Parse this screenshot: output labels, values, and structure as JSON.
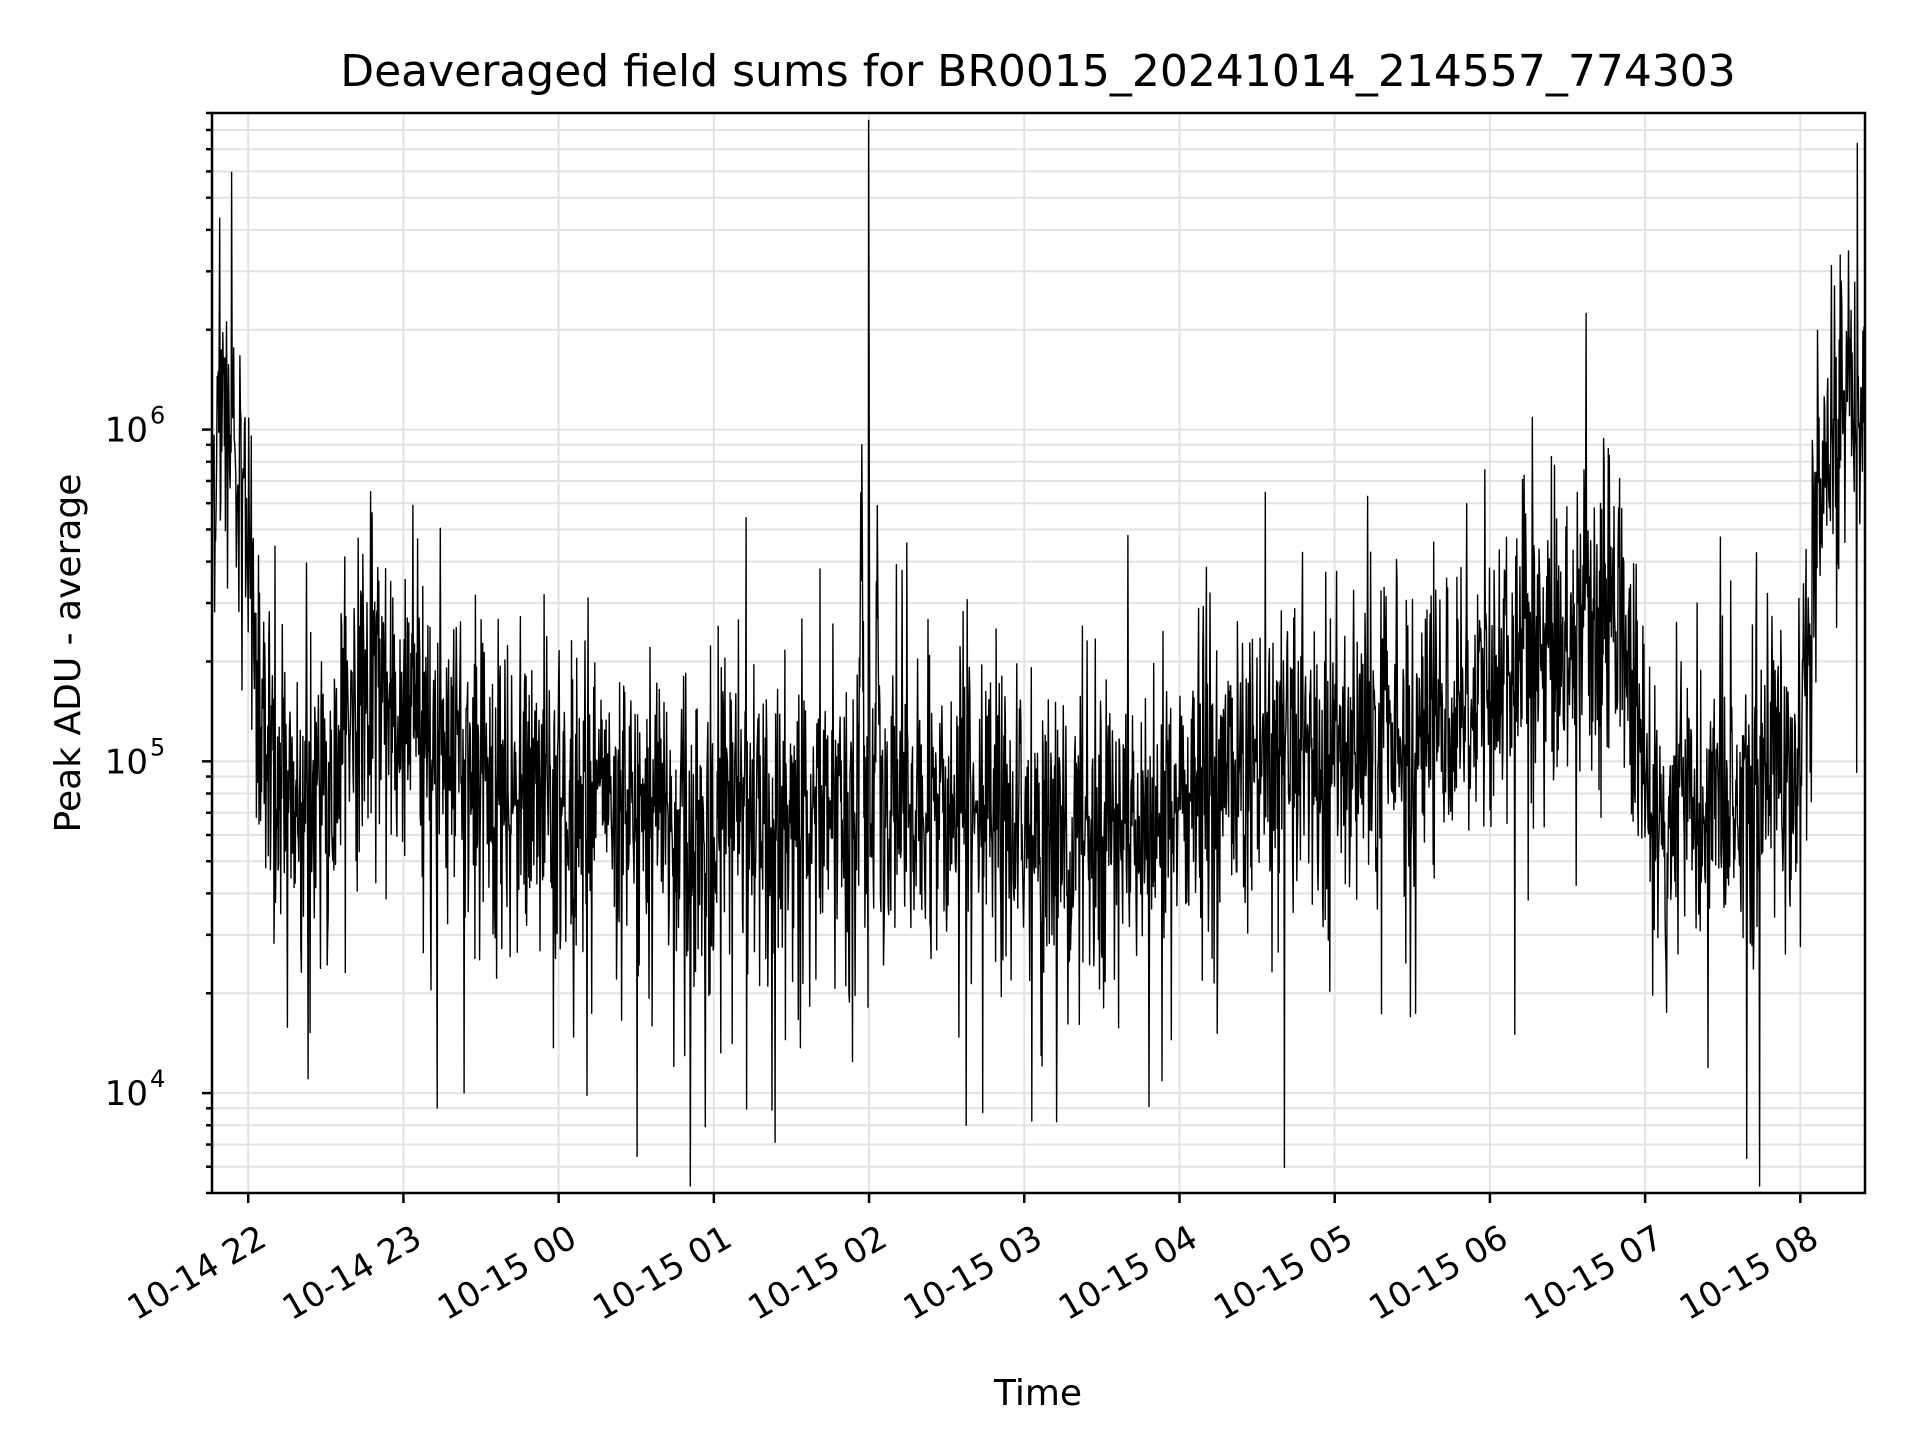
{
  "chart_data": {
    "type": "line",
    "title": "Deaveraged field sums for BR0015_20241014_214557_774303",
    "xlabel": "Time",
    "ylabel": "Peak ADU - average",
    "yscale": "log",
    "xlim": [
      "2024-10-14 21:46",
      "2024-10-15 08:25"
    ],
    "ylim": [
      5000,
      9000000
    ],
    "grid": true,
    "line_color": "#000000",
    "x_ticks": [
      {
        "label": "10-14 22",
        "t": "2024-10-14 22:00"
      },
      {
        "label": "10-14 23",
        "t": "2024-10-14 23:00"
      },
      {
        "label": "10-15 00",
        "t": "2024-10-15 00:00"
      },
      {
        "label": "10-15 01",
        "t": "2024-10-15 01:00"
      },
      {
        "label": "10-15 02",
        "t": "2024-10-15 02:00"
      },
      {
        "label": "10-15 03",
        "t": "2024-10-15 03:00"
      },
      {
        "label": "10-15 04",
        "t": "2024-10-15 04:00"
      },
      {
        "label": "10-15 05",
        "t": "2024-10-15 05:00"
      },
      {
        "label": "10-15 06",
        "t": "2024-10-15 06:00"
      },
      {
        "label": "10-15 07",
        "t": "2024-10-15 07:00"
      },
      {
        "label": "10-15 08",
        "t": "2024-10-15 08:00"
      }
    ],
    "y_ticks": [
      {
        "base": "10",
        "exp": "4",
        "value": 10000
      },
      {
        "base": "10",
        "exp": "5",
        "value": 100000
      },
      {
        "base": "10",
        "exp": "6",
        "value": 1000000
      }
    ],
    "x": [
      "2024-10-14 21:46",
      "2024-10-14 21:50",
      "2024-10-14 21:55",
      "2024-10-14 22:00",
      "2024-10-14 22:05",
      "2024-10-14 22:10",
      "2024-10-14 22:15",
      "2024-10-14 22:20",
      "2024-10-14 22:25",
      "2024-10-14 22:30",
      "2024-10-14 22:35",
      "2024-10-14 22:40",
      "2024-10-14 22:45",
      "2024-10-14 22:50",
      "2024-10-14 22:55",
      "2024-10-14 23:00",
      "2024-10-14 23:05",
      "2024-10-14 23:10",
      "2024-10-14 23:15",
      "2024-10-14 23:20",
      "2024-10-14 23:25",
      "2024-10-14 23:30",
      "2024-10-14 23:35",
      "2024-10-14 23:40",
      "2024-10-14 23:45",
      "2024-10-14 23:50",
      "2024-10-14 23:55",
      "2024-10-15 00:00",
      "2024-10-15 00:05",
      "2024-10-15 00:10",
      "2024-10-15 00:15",
      "2024-10-15 00:20",
      "2024-10-15 00:25",
      "2024-10-15 00:30",
      "2024-10-15 00:35",
      "2024-10-15 00:40",
      "2024-10-15 00:45",
      "2024-10-15 00:50",
      "2024-10-15 00:55",
      "2024-10-15 01:00",
      "2024-10-15 01:05",
      "2024-10-15 01:10",
      "2024-10-15 01:15",
      "2024-10-15 01:20",
      "2024-10-15 01:25",
      "2024-10-15 01:30",
      "2024-10-15 01:35",
      "2024-10-15 01:40",
      "2024-10-15 01:45",
      "2024-10-15 01:50",
      "2024-10-15 01:55",
      "2024-10-15 02:00",
      "2024-10-15 02:05",
      "2024-10-15 02:10",
      "2024-10-15 02:15",
      "2024-10-15 02:20",
      "2024-10-15 02:25",
      "2024-10-15 02:30",
      "2024-10-15 02:35",
      "2024-10-15 02:40",
      "2024-10-15 02:45",
      "2024-10-15 02:50",
      "2024-10-15 02:55",
      "2024-10-15 03:00",
      "2024-10-15 03:05",
      "2024-10-15 03:10",
      "2024-10-15 03:15",
      "2024-10-15 03:20",
      "2024-10-15 03:25",
      "2024-10-15 03:30",
      "2024-10-15 03:35",
      "2024-10-15 03:40",
      "2024-10-15 03:45",
      "2024-10-15 03:50",
      "2024-10-15 03:55",
      "2024-10-15 04:00",
      "2024-10-15 04:05",
      "2024-10-15 04:10",
      "2024-10-15 04:15",
      "2024-10-15 04:20",
      "2024-10-15 04:25",
      "2024-10-15 04:30",
      "2024-10-15 04:35",
      "2024-10-15 04:40",
      "2024-10-15 04:45",
      "2024-10-15 04:50",
      "2024-10-15 04:55",
      "2024-10-15 05:00",
      "2024-10-15 05:05",
      "2024-10-15 05:10",
      "2024-10-15 05:15",
      "2024-10-15 05:20",
      "2024-10-15 05:25",
      "2024-10-15 05:30",
      "2024-10-15 05:35",
      "2024-10-15 05:40",
      "2024-10-15 05:45",
      "2024-10-15 05:50",
      "2024-10-15 05:55",
      "2024-10-15 06:00",
      "2024-10-15 06:05",
      "2024-10-15 06:10",
      "2024-10-15 06:15",
      "2024-10-15 06:20",
      "2024-10-15 06:25",
      "2024-10-15 06:30",
      "2024-10-15 06:35",
      "2024-10-15 06:40",
      "2024-10-15 06:45",
      "2024-10-15 06:50",
      "2024-10-15 06:55",
      "2024-10-15 07:00",
      "2024-10-15 07:05",
      "2024-10-15 07:10",
      "2024-10-15 07:15",
      "2024-10-15 07:20",
      "2024-10-15 07:25",
      "2024-10-15 07:30",
      "2024-10-15 07:35",
      "2024-10-15 07:40",
      "2024-10-15 07:45",
      "2024-10-15 07:50",
      "2024-10-15 07:55",
      "2024-10-15 08:00",
      "2024-10-15 08:05",
      "2024-10-15 08:10",
      "2024-10-15 08:15",
      "2024-10-15 08:20",
      "2024-10-15 08:25"
    ],
    "series": [
      {
        "values": [
          700000,
          1200000,
          900000,
          600000,
          150000,
          90000,
          85000,
          80000,
          75000,
          80000,
          110000,
          150000,
          160000,
          170000,
          140000,
          120000,
          130000,
          120000,
          115000,
          110000,
          95000,
          80000,
          70000,
          65000,
          75000,
          80000,
          78000,
          75000,
          72000,
          70000,
          70000,
          72000,
          70000,
          68000,
          66000,
          65000,
          62000,
          60000,
          62000,
          64000,
          66000,
          68000,
          65000,
          62000,
          63000,
          65000,
          67000,
          70000,
          70000,
          68000,
          70000,
          3800000,
          72000,
          70000,
          68000,
          66000,
          68000,
          70000,
          72000,
          70000,
          68000,
          66000,
          64000,
          65000,
          66000,
          63000,
          60000,
          62000,
          65000,
          66000,
          64000,
          62000,
          63000,
          66000,
          70000,
          75000,
          80000,
          85000,
          90000,
          92000,
          88000,
          90000,
          95000,
          100000,
          100000,
          105000,
          95000,
          100000,
          110000,
          115000,
          120000,
          125000,
          120000,
          125000,
          130000,
          140000,
          150000,
          160000,
          170000,
          180000,
          200000,
          220000,
          200000,
          210000,
          230000,
          260000,
          280000,
          300000,
          280000,
          250000,
          150000,
          80000,
          75000,
          70000,
          72000,
          70000,
          75000,
          85000,
          90000,
          88000,
          95000,
          100000,
          90000,
          95000,
          400000,
          800000,
          1200000,
          1300000,
          1100000
        ]
      }
    ]
  }
}
